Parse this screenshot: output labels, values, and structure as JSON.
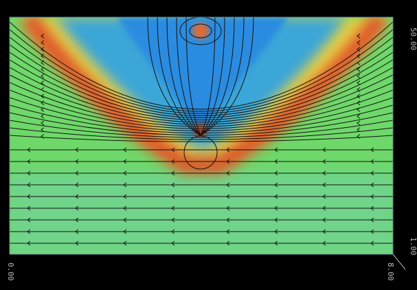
{
  "axis_labels": {
    "top_right": "50.00",
    "right_lower": "1.00",
    "bottom_left": "0.00",
    "bottom_right": "8.00"
  }
}
